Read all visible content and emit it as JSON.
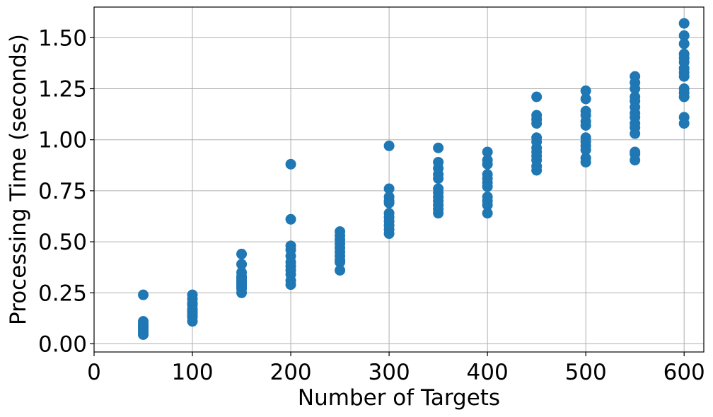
{
  "chart_data": {
    "type": "scatter",
    "xlabel": "Number of Targets",
    "ylabel": "Processing Time (seconds)",
    "xlim": [
      0,
      620
    ],
    "ylim": [
      -0.04,
      1.65
    ],
    "xticks": [
      0,
      100,
      200,
      300,
      400,
      500,
      600
    ],
    "xtick_labels": [
      "0",
      "100",
      "200",
      "300",
      "400",
      "500",
      "600"
    ],
    "yticks": [
      0,
      0.25,
      0.5,
      0.75,
      1.0,
      1.25,
      1.5
    ],
    "ytick_labels": [
      "0.00",
      "0.25",
      "0.50",
      "0.75",
      "1.00",
      "1.25",
      "1.50"
    ],
    "grid": true,
    "marker_color": "#1f77b4",
    "series": [
      {
        "points": [
          [
            50,
            0.24
          ],
          [
            50,
            0.11
          ],
          [
            50,
            0.1
          ],
          [
            50,
            0.09
          ],
          [
            50,
            0.08
          ],
          [
            50,
            0.07
          ],
          [
            50,
            0.06
          ],
          [
            50,
            0.05
          ],
          [
            50,
            0.045
          ],
          [
            100,
            0.24
          ],
          [
            100,
            0.22
          ],
          [
            100,
            0.2
          ],
          [
            100,
            0.19
          ],
          [
            100,
            0.17
          ],
          [
            100,
            0.16
          ],
          [
            100,
            0.15
          ],
          [
            100,
            0.14
          ],
          [
            100,
            0.13
          ],
          [
            100,
            0.11
          ],
          [
            150,
            0.44
          ],
          [
            150,
            0.39
          ],
          [
            150,
            0.35
          ],
          [
            150,
            0.33
          ],
          [
            150,
            0.32
          ],
          [
            150,
            0.31
          ],
          [
            150,
            0.3
          ],
          [
            150,
            0.29
          ],
          [
            150,
            0.28
          ],
          [
            150,
            0.27
          ],
          [
            150,
            0.25
          ],
          [
            200,
            0.88
          ],
          [
            200,
            0.61
          ],
          [
            200,
            0.48
          ],
          [
            200,
            0.46
          ],
          [
            200,
            0.43
          ],
          [
            200,
            0.4
          ],
          [
            200,
            0.38
          ],
          [
            200,
            0.36
          ],
          [
            200,
            0.34
          ],
          [
            200,
            0.31
          ],
          [
            200,
            0.29
          ],
          [
            250,
            0.55
          ],
          [
            250,
            0.53
          ],
          [
            250,
            0.51
          ],
          [
            250,
            0.49
          ],
          [
            250,
            0.47
          ],
          [
            250,
            0.45
          ],
          [
            250,
            0.43
          ],
          [
            250,
            0.41
          ],
          [
            250,
            0.4
          ],
          [
            250,
            0.36
          ],
          [
            300,
            0.97
          ],
          [
            300,
            0.76
          ],
          [
            300,
            0.72
          ],
          [
            300,
            0.7
          ],
          [
            300,
            0.69
          ],
          [
            300,
            0.64
          ],
          [
            300,
            0.62
          ],
          [
            300,
            0.6
          ],
          [
            300,
            0.58
          ],
          [
            300,
            0.56
          ],
          [
            300,
            0.54
          ],
          [
            350,
            0.96
          ],
          [
            350,
            0.89
          ],
          [
            350,
            0.86
          ],
          [
            350,
            0.83
          ],
          [
            350,
            0.81
          ],
          [
            350,
            0.76
          ],
          [
            350,
            0.74
          ],
          [
            350,
            0.72
          ],
          [
            350,
            0.7
          ],
          [
            350,
            0.68
          ],
          [
            350,
            0.66
          ],
          [
            350,
            0.64
          ],
          [
            400,
            0.94
          ],
          [
            400,
            0.9
          ],
          [
            400,
            0.88
          ],
          [
            400,
            0.83
          ],
          [
            400,
            0.81
          ],
          [
            400,
            0.79
          ],
          [
            400,
            0.77
          ],
          [
            400,
            0.72
          ],
          [
            400,
            0.7
          ],
          [
            400,
            0.68
          ],
          [
            400,
            0.64
          ],
          [
            450,
            1.21
          ],
          [
            450,
            1.12
          ],
          [
            450,
            1.1
          ],
          [
            450,
            1.08
          ],
          [
            450,
            1.01
          ],
          [
            450,
            0.99
          ],
          [
            450,
            0.96
          ],
          [
            450,
            0.94
          ],
          [
            450,
            0.92
          ],
          [
            450,
            0.9
          ],
          [
            450,
            0.87
          ],
          [
            450,
            0.85
          ],
          [
            500,
            1.24
          ],
          [
            500,
            1.2
          ],
          [
            500,
            1.14
          ],
          [
            500,
            1.12
          ],
          [
            500,
            1.09
          ],
          [
            500,
            1.07
          ],
          [
            500,
            1.01
          ],
          [
            500,
            0.99
          ],
          [
            500,
            0.97
          ],
          [
            500,
            0.95
          ],
          [
            500,
            0.91
          ],
          [
            500,
            0.89
          ],
          [
            550,
            1.31
          ],
          [
            550,
            1.28
          ],
          [
            550,
            1.25
          ],
          [
            550,
            1.21
          ],
          [
            550,
            1.19
          ],
          [
            550,
            1.16
          ],
          [
            550,
            1.13
          ],
          [
            550,
            1.11
          ],
          [
            550,
            1.08
          ],
          [
            550,
            1.06
          ],
          [
            550,
            1.03
          ],
          [
            550,
            0.94
          ],
          [
            550,
            0.93
          ],
          [
            550,
            0.9
          ],
          [
            600,
            1.57
          ],
          [
            600,
            1.51
          ],
          [
            600,
            1.47
          ],
          [
            600,
            1.42
          ],
          [
            600,
            1.4
          ],
          [
            600,
            1.38
          ],
          [
            600,
            1.35
          ],
          [
            600,
            1.33
          ],
          [
            600,
            1.31
          ],
          [
            600,
            1.25
          ],
          [
            600,
            1.23
          ],
          [
            600,
            1.21
          ],
          [
            600,
            1.11
          ],
          [
            600,
            1.08
          ]
        ]
      }
    ]
  }
}
